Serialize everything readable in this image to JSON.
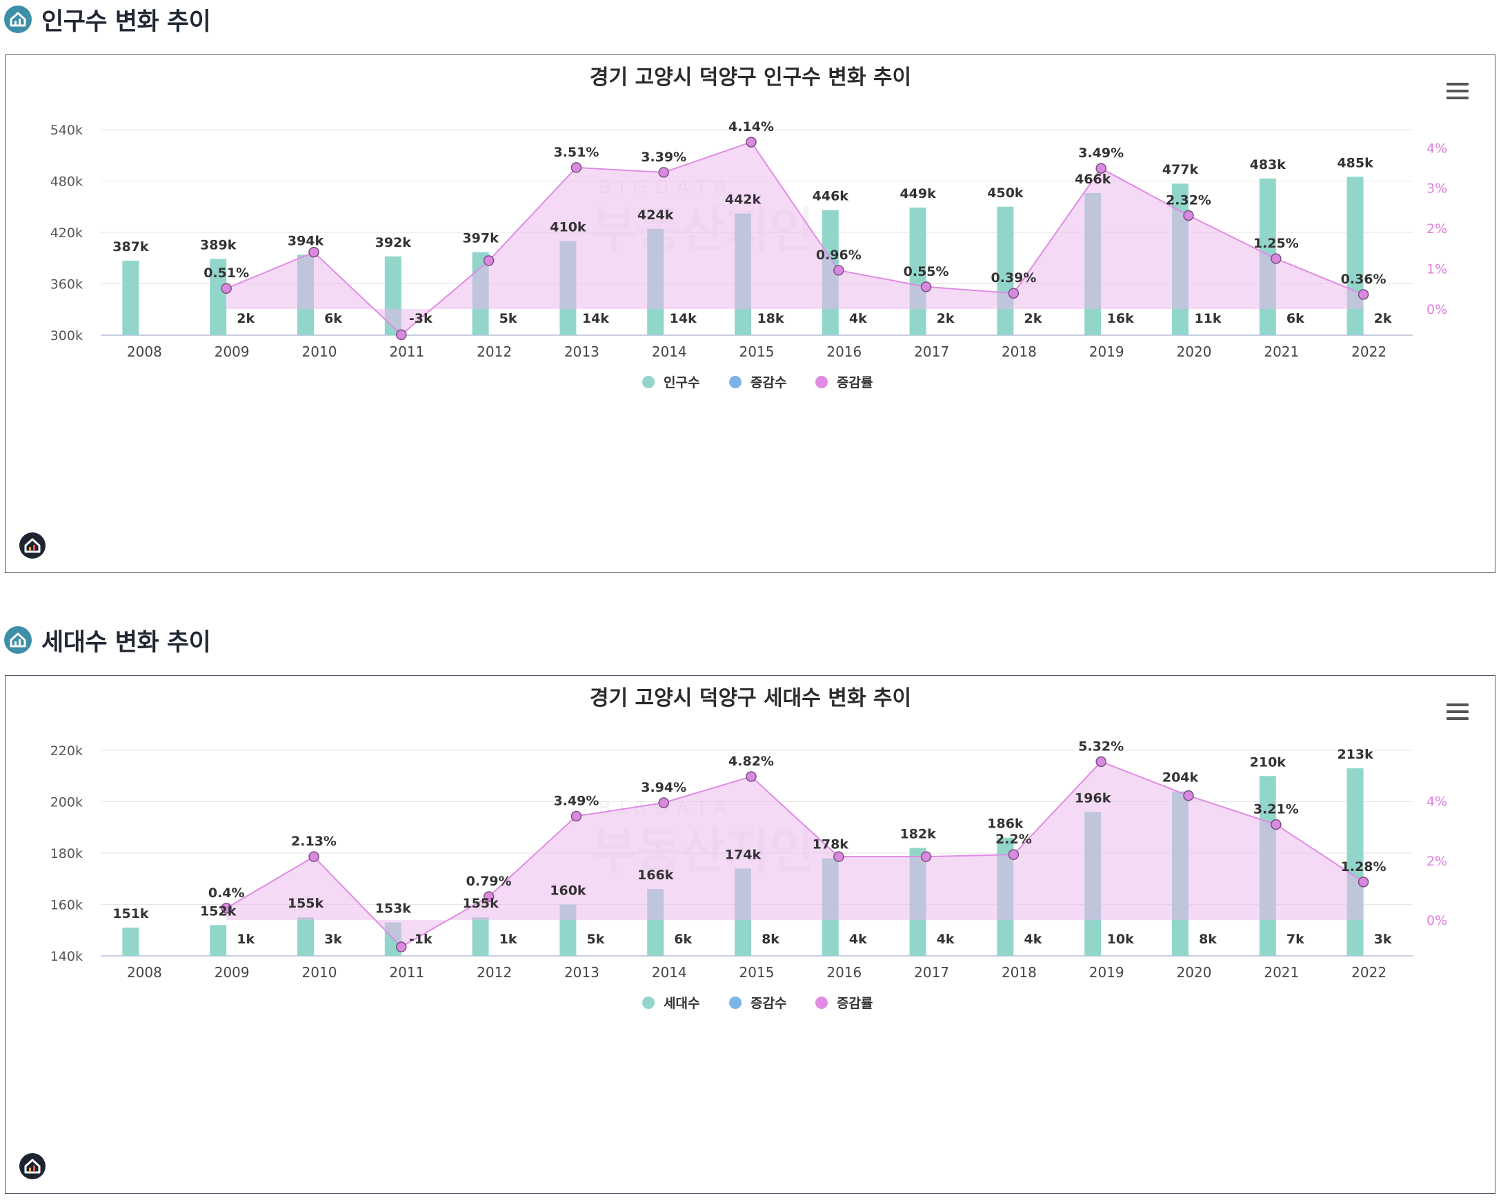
{
  "sections": [
    {
      "heading": "인구수 변화 추이",
      "chart_data": {
        "type": "bar",
        "title": "경기 고양시 덕양구 인구수 변화 추이",
        "categories": [
          "2008",
          "2009",
          "2010",
          "2011",
          "2012",
          "2013",
          "2014",
          "2015",
          "2016",
          "2017",
          "2018",
          "2019",
          "2020",
          "2021",
          "2022"
        ],
        "series": [
          {
            "name": "인구수",
            "type": "bar",
            "axis": "left",
            "color": "#92d6cb",
            "values": [
              387000,
              389000,
              394000,
              392000,
              397000,
              410000,
              424000,
              442000,
              446000,
              449000,
              450000,
              466000,
              477000,
              483000,
              485000
            ],
            "labels": [
              "387k",
              "389k",
              "394k",
              "392k",
              "397k",
              "410k",
              "424k",
              "442k",
              "446k",
              "449k",
              "450k",
              "466k",
              "477k",
              "483k",
              "485k"
            ]
          },
          {
            "name": "증감수",
            "type": "bar",
            "axis": "left",
            "color": "#7cb4ea",
            "values": [
              null,
              2000,
              6000,
              -3000,
              5000,
              14000,
              14000,
              18000,
              4000,
              2000,
              2000,
              16000,
              11000,
              6000,
              2000
            ],
            "labels": [
              "",
              "2k",
              "6k",
              "-3k",
              "5k",
              "14k",
              "14k",
              "18k",
              "4k",
              "2k",
              "2k",
              "16k",
              "11k",
              "6k",
              "2k"
            ]
          },
          {
            "name": "증감률",
            "type": "area",
            "axis": "right",
            "color": "#e08be4",
            "values": [
              null,
              0.51,
              1.41,
              -0.64,
              1.2,
              3.51,
              3.39,
              4.14,
              0.96,
              0.55,
              0.39,
              3.49,
              2.32,
              1.25,
              0.36
            ],
            "labels": [
              "",
              "0.51%",
              "",
              "",
              "",
              "3.51%",
              "3.39%",
              "4.14%",
              "0.96%",
              "0.55%",
              "0.39%",
              "3.49%",
              "2.32%",
              "1.25%",
              "0.36%"
            ]
          }
        ],
        "yaxis_left": {
          "min": 300000,
          "max": 540000,
          "ticks": [
            "300k",
            "360k",
            "420k",
            "480k",
            "540k"
          ]
        },
        "yaxis_right": {
          "min": -0.65,
          "max": 4.45,
          "tick_values": [
            0,
            1,
            2,
            3,
            4
          ],
          "ticks": [
            "0%",
            "1%",
            "2%",
            "3%",
            "4%"
          ]
        },
        "legend": {
          "position": "bottom-center",
          "items": [
            "인구수",
            "증감수",
            "증감률"
          ]
        },
        "grid": true,
        "watermark": {
          "top": "BIGDATA",
          "bottom": "부동산지인"
        }
      }
    },
    {
      "heading": "세대수 변화 추이",
      "chart_data": {
        "type": "bar",
        "title": "경기 고양시 덕양구 세대수 변화 추이",
        "categories": [
          "2008",
          "2009",
          "2010",
          "2011",
          "2012",
          "2013",
          "2014",
          "2015",
          "2016",
          "2017",
          "2018",
          "2019",
          "2020",
          "2021",
          "2022"
        ],
        "series": [
          {
            "name": "세대수",
            "type": "bar",
            "axis": "left",
            "color": "#92d6cb",
            "values": [
              151000,
              152000,
              155000,
              153000,
              155000,
              160000,
              166000,
              174000,
              178000,
              182000,
              186000,
              196000,
              204000,
              210000,
              213000
            ],
            "labels": [
              "151k",
              "152k",
              "155k",
              "153k",
              "155k",
              "160k",
              "166k",
              "174k",
              "178k",
              "182k",
              "186k",
              "196k",
              "204k",
              "210k",
              "213k"
            ]
          },
          {
            "name": "증감수",
            "type": "bar",
            "axis": "left",
            "color": "#7cb4ea",
            "values": [
              null,
              1000,
              3000,
              -1000,
              1000,
              5000,
              6000,
              8000,
              4000,
              4000,
              4000,
              10000,
              8000,
              7000,
              3000
            ],
            "labels": [
              "",
              "1k",
              "3k",
              "-1k",
              "1k",
              "5k",
              "6k",
              "8k",
              "4k",
              "4k",
              "4k",
              "10k",
              "8k",
              "7k",
              "3k"
            ]
          },
          {
            "name": "증감률",
            "type": "area",
            "axis": "right",
            "color": "#e08be4",
            "values": [
              null,
              0.4,
              2.13,
              -0.9,
              0.79,
              3.49,
              3.94,
              4.82,
              2.13,
              2.13,
              2.2,
              5.32,
              4.18,
              3.21,
              1.28
            ],
            "labels": [
              "",
              "0.4%",
              "2.13%",
              "",
              "0.79%",
              "3.49%",
              "3.94%",
              "4.82%",
              "",
              "",
              "2.2%",
              "5.32%",
              "",
              "3.21%",
              "1.28%"
            ]
          }
        ],
        "yaxis_left": {
          "min": 140000,
          "max": 220000,
          "ticks": [
            "140k",
            "160k",
            "180k",
            "200k",
            "220k"
          ]
        },
        "yaxis_right": {
          "min": -1.2,
          "max": 5.7,
          "tick_values": [
            0,
            2,
            4
          ],
          "ticks": [
            "0%",
            "2%",
            "4%"
          ]
        },
        "legend": {
          "position": "bottom-center",
          "items": [
            "세대수",
            "증감수",
            "증감률"
          ]
        },
        "grid": true,
        "watermark": {
          "top": "BIGDATA",
          "bottom": "부동산지인"
        }
      }
    }
  ]
}
